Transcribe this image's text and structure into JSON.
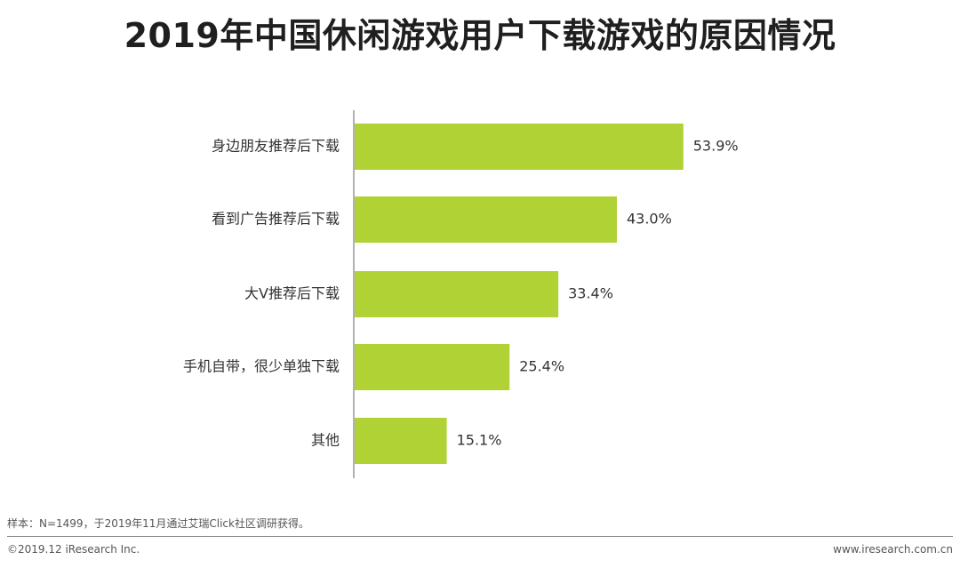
{
  "chart_data": {
    "type": "bar",
    "orientation": "horizontal",
    "title": "2019年中国休闲游戏用户下载游戏的原因情况",
    "categories": [
      "身边朋友推荐后下载",
      "看到广告推荐后下载",
      "大V推荐后下载",
      "手机自带，很少单独下载",
      "其他"
    ],
    "values": [
      53.9,
      43.0,
      33.4,
      25.4,
      15.1
    ],
    "value_labels": [
      "53.9%",
      "43.0%",
      "33.4%",
      "25.4%",
      "15.1%"
    ],
    "unit": "%",
    "xlim": [
      0,
      100
    ],
    "bar_color": "#b0d235",
    "grid": false,
    "legend": "none"
  },
  "footer": {
    "note": "样本：N=1499，于2019年11月通过艾瑞Click社区调研获得。",
    "copyright": "©2019.12 iResearch Inc.",
    "site": "www.iresearch.com.cn"
  }
}
